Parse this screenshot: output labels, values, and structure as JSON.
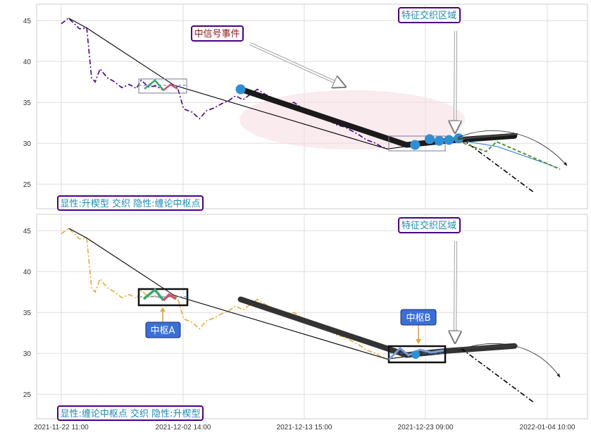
{
  "chart_data": [
    {
      "type": "line",
      "panel": "top",
      "ylim": [
        22,
        47
      ],
      "yticks": [
        25,
        30,
        35,
        40,
        45
      ],
      "grid": true,
      "series": [
        {
          "style": "dash-dot",
          "color": "#4b0082",
          "values": [
            [
              0,
              44.6
            ],
            [
              0.6,
              45.3
            ],
            [
              1.5,
              44.0
            ],
            [
              2.1,
              44.1
            ],
            [
              2.5,
              38.0
            ],
            [
              2.8,
              37.5
            ],
            [
              3.2,
              39.1
            ],
            [
              3.8,
              38.0
            ],
            [
              4.3,
              37.6
            ],
            [
              5.0,
              36.8
            ],
            [
              5.6,
              37.2
            ],
            [
              6.2,
              36.7
            ],
            [
              6.6,
              37.7
            ],
            [
              7.2,
              36.9
            ],
            [
              7.8,
              37.0
            ],
            [
              8.4,
              36.5
            ],
            [
              9.0,
              37.2
            ],
            [
              9.6,
              36.8
            ],
            [
              10.1,
              34.2
            ],
            [
              10.8,
              33.8
            ],
            [
              11.4,
              33.0
            ],
            [
              12.0,
              34.0
            ],
            [
              12.6,
              34.3
            ],
            [
              13.2,
              34.8
            ],
            [
              13.8,
              35.2
            ],
            [
              14.4,
              35.8
            ],
            [
              15.0,
              35.3
            ],
            [
              15.6,
              36.0
            ],
            [
              16.2,
              36.6
            ],
            [
              16.8,
              36.0
            ],
            [
              17.4,
              35.6
            ],
            [
              18.0,
              35.2
            ],
            [
              18.6,
              34.8
            ],
            [
              19.2,
              35.0
            ],
            [
              19.8,
              34.4
            ],
            [
              20.4,
              33.9
            ],
            [
              21.0,
              33.6
            ],
            [
              21.6,
              33.1
            ],
            [
              22.2,
              32.7
            ],
            [
              22.8,
              32.2
            ],
            [
              23.4,
              32.0
            ],
            [
              24.0,
              31.5
            ],
            [
              24.6,
              31.0
            ],
            [
              25.2,
              30.4
            ],
            [
              25.8,
              30.1
            ],
            [
              26.4,
              29.6
            ],
            [
              26.9,
              29.3
            ]
          ]
        },
        {
          "style": "solid",
          "color": "#000000",
          "values": [
            [
              0.6,
              45.3
            ],
            [
              2.1,
              44.1
            ],
            [
              9.3,
              37.1
            ],
            [
              26.9,
              29.3
            ],
            [
              34.4,
              30.8
            ]
          ]
        },
        {
          "style": "thick",
          "color": "#1a1a1a",
          "values": [
            [
              14.8,
              36.6
            ],
            [
              28.5,
              29.8
            ],
            [
              31.8,
              30.3
            ],
            [
              37.4,
              30.9
            ]
          ]
        },
        {
          "style": "dash-dot",
          "color": "#000000",
          "values": [
            [
              33.0,
              30.6
            ],
            [
              39.0,
              24.0
            ]
          ]
        },
        {
          "style": "solid",
          "color": "#2e8bd0",
          "values": [
            [
              33.5,
              30.2
            ],
            [
              36.0,
              29.6
            ],
            [
              41.0,
              27.0
            ]
          ]
        }
      ],
      "points": [
        [
          14.8,
          36.6
        ],
        [
          29.2,
          29.8
        ],
        [
          30.4,
          30.5
        ],
        [
          31.2,
          30.3
        ],
        [
          32.0,
          30.4
        ],
        [
          32.8,
          30.6
        ]
      ],
      "annotations": [
        {
          "text": "中信号事件",
          "color": "#8b1a1a"
        },
        {
          "text": "特征交织区域",
          "color": "#1e8bb0"
        },
        {
          "text": "显性:升楔型 交织 隐性:缠论中枢点",
          "color": "#1e8bb0"
        }
      ]
    },
    {
      "type": "line",
      "panel": "bottom",
      "ylim": [
        22,
        47
      ],
      "yticks": [
        25,
        30,
        35,
        40,
        45
      ],
      "xticks": [
        "2021-11-22 11:00",
        "2021-12-02 14:00",
        "2021-12-13 15:00",
        "2021-12-23 09:00",
        "2022-01-04 10:00"
      ],
      "grid": true,
      "series": [
        {
          "style": "dash-dot",
          "color": "#e8a838",
          "values": [
            [
              0,
              44.6
            ],
            [
              0.6,
              45.3
            ],
            [
              1.5,
              44.0
            ],
            [
              2.1,
              44.1
            ],
            [
              2.5,
              38.0
            ],
            [
              2.8,
              37.5
            ],
            [
              3.2,
              39.1
            ],
            [
              3.8,
              38.0
            ],
            [
              4.3,
              37.6
            ],
            [
              5.0,
              36.8
            ],
            [
              5.6,
              37.2
            ],
            [
              6.2,
              36.7
            ],
            [
              6.6,
              37.7
            ],
            [
              7.2,
              36.9
            ],
            [
              7.8,
              37.0
            ],
            [
              8.4,
              36.5
            ],
            [
              9.0,
              37.2
            ],
            [
              9.6,
              36.8
            ],
            [
              10.1,
              34.2
            ],
            [
              10.8,
              33.8
            ],
            [
              11.4,
              33.0
            ],
            [
              12.0,
              34.0
            ],
            [
              12.6,
              34.3
            ],
            [
              13.2,
              34.8
            ],
            [
              13.8,
              35.2
            ],
            [
              14.4,
              35.8
            ],
            [
              15.0,
              35.3
            ],
            [
              15.6,
              36.0
            ],
            [
              16.2,
              36.6
            ],
            [
              16.8,
              36.0
            ],
            [
              17.4,
              35.6
            ],
            [
              18.0,
              35.2
            ],
            [
              18.6,
              34.8
            ],
            [
              19.2,
              35.0
            ],
            [
              19.8,
              34.4
            ],
            [
              20.4,
              33.9
            ],
            [
              21.0,
              33.6
            ],
            [
              21.6,
              33.1
            ],
            [
              22.2,
              32.7
            ],
            [
              22.8,
              32.2
            ],
            [
              23.4,
              32.0
            ],
            [
              24.0,
              31.5
            ],
            [
              24.6,
              31.0
            ],
            [
              25.2,
              30.4
            ],
            [
              25.8,
              30.1
            ],
            [
              26.4,
              29.6
            ],
            [
              26.9,
              29.3
            ]
          ]
        },
        {
          "style": "solid",
          "color": "#000000",
          "values": [
            [
              0.6,
              45.3
            ],
            [
              2.1,
              44.1
            ],
            [
              9.3,
              37.1
            ],
            [
              26.9,
              29.3
            ],
            [
              34.4,
              30.8
            ]
          ]
        },
        {
          "style": "thick",
          "color": "#333333",
          "values": [
            [
              14.8,
              36.6
            ],
            [
              28.5,
              29.8
            ],
            [
              31.8,
              30.3
            ],
            [
              37.4,
              30.9
            ]
          ]
        },
        {
          "style": "dash-dot",
          "color": "#000000",
          "values": [
            [
              33.0,
              30.6
            ],
            [
              39.0,
              24.0
            ]
          ]
        }
      ],
      "annotations": [
        {
          "text": "中枢A",
          "color": "#ffffff",
          "bg": "#3b6fd6"
        },
        {
          "text": "中枢B",
          "color": "#ffffff",
          "bg": "#3b6fd6"
        },
        {
          "text": "特征交织区域",
          "color": "#1e8bb0"
        },
        {
          "text": "显性:缠论中枢点 交织 隐性:升楔型",
          "color": "#1e8bb0"
        }
      ]
    }
  ]
}
